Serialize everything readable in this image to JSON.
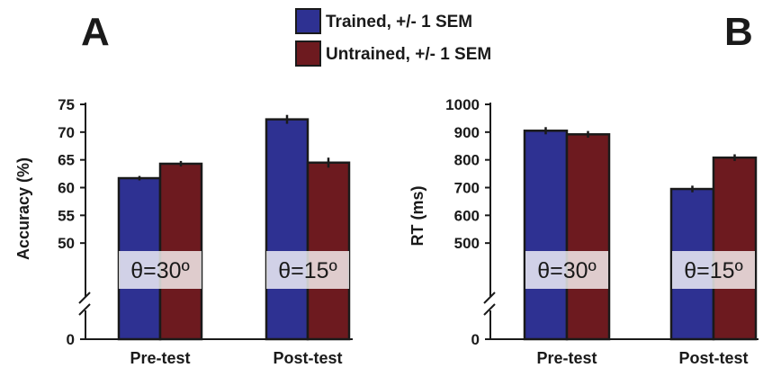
{
  "legend": [
    {
      "label": "Trained, +/- 1 SEM",
      "color": "#2e3192"
    },
    {
      "label": "Untrained, +/- 1 SEM",
      "color": "#6d1a1f"
    }
  ],
  "chart_data": [
    {
      "type": "bar",
      "panel_label": "A",
      "categories": [
        "Pre-test",
        "Post-test"
      ],
      "series": [
        {
          "name": "Trained, +/- 1 SEM",
          "values": [
            61.7,
            72.3
          ],
          "sem": [
            0.4,
            0.8
          ],
          "color": "#2e3192"
        },
        {
          "name": "Untrained, +/- 1 SEM",
          "values": [
            64.3,
            64.5
          ],
          "sem": [
            0.5,
            0.9
          ],
          "color": "#6d1a1f"
        }
      ],
      "ylabel": "Accuracy (%)",
      "ylim": [
        45,
        75
      ],
      "yticks": [
        50,
        55,
        60,
        65,
        70,
        75
      ],
      "y_zero_label": "0",
      "axis_break": true,
      "annotations": [
        "θ=30º",
        "θ=15º"
      ],
      "grid": false
    },
    {
      "type": "bar",
      "panel_label": "B",
      "categories": [
        "Pre-test",
        "Post-test"
      ],
      "series": [
        {
          "name": "Trained, +/- 1 SEM",
          "values": [
            905,
            695
          ],
          "sem": [
            13,
            12
          ],
          "color": "#2e3192"
        },
        {
          "name": "Untrained, +/- 1 SEM",
          "values": [
            892,
            808
          ],
          "sem": [
            12,
            12
          ],
          "color": "#6d1a1f"
        }
      ],
      "ylabel": "RT (ms)",
      "ylim": [
        400,
        1000
      ],
      "yticks": [
        500,
        600,
        700,
        800,
        900,
        1000
      ],
      "y_zero_label": "0",
      "axis_break": true,
      "annotations": [
        "θ=30º",
        "θ=15º"
      ],
      "grid": false
    }
  ]
}
